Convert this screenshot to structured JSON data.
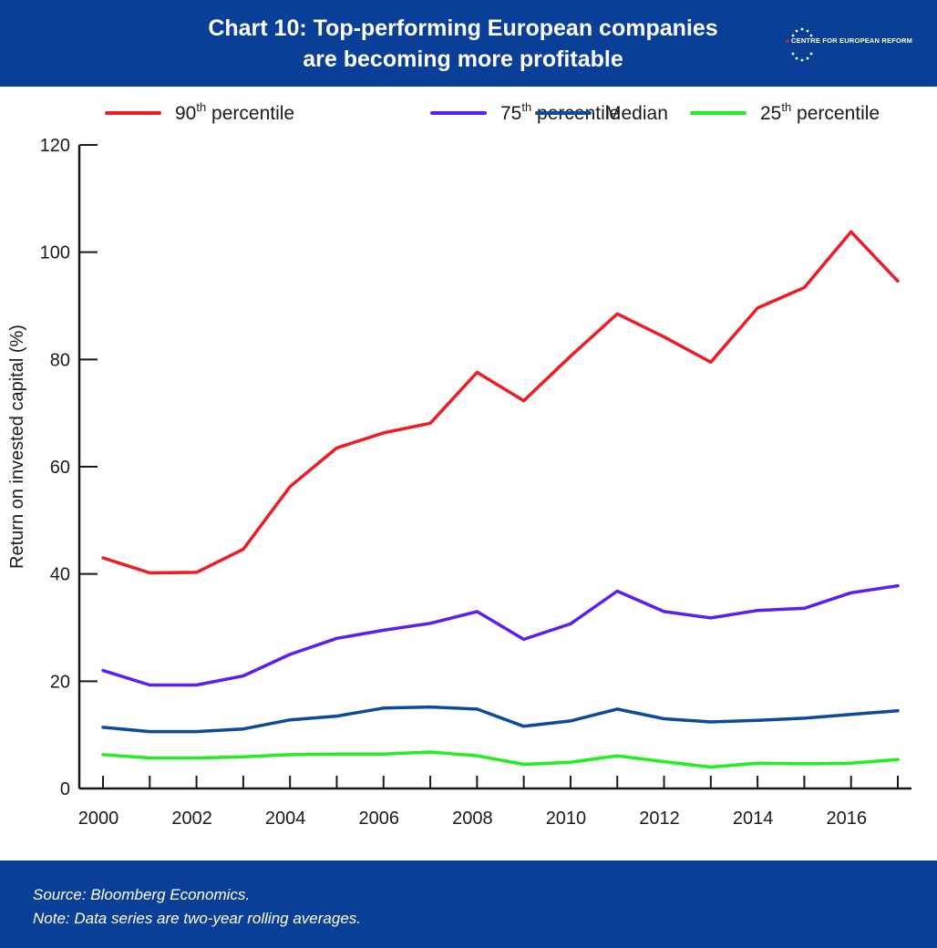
{
  "header": {
    "title_line1": "Chart 10: Top-performing European companies",
    "title_line2": "are becoming more profitable",
    "logo_text": "CENTRE FOR EUROPEAN REFORM"
  },
  "footer": {
    "source": "Source: Bloomberg Economics.",
    "note": "Note: Data series are two-year rolling averages."
  },
  "colors": {
    "header_bg": "#0a3f97",
    "p90": "#ee1c24",
    "p75": "#5b1ff0",
    "median": "#0c4a9c",
    "p25": "#22ee22"
  },
  "chart_data": {
    "type": "line",
    "ylabel": "Return on invested capital (%)",
    "xlabel": "",
    "ylim": [
      0,
      120
    ],
    "yticks": [
      0,
      20,
      40,
      60,
      80,
      100,
      120
    ],
    "xlim": [
      2000,
      2017
    ],
    "xticks": [
      2000,
      2002,
      2004,
      2006,
      2008,
      2010,
      2012,
      2014,
      2016
    ],
    "legend_position": "top",
    "grid": false,
    "x": [
      2000,
      2001,
      2002,
      2003,
      2004,
      2005,
      2006,
      2007,
      2008,
      2009,
      2010,
      2011,
      2012,
      2013,
      2014,
      2015,
      2016,
      2017
    ],
    "series": [
      {
        "name_base": "90",
        "name_sup": "th",
        "name_rest": " percentile",
        "color": "#ee1c24",
        "values": [
          43.0,
          40.2,
          40.3,
          44.6,
          56.3,
          63.5,
          66.3,
          68.1,
          77.6,
          72.3,
          80.6,
          88.5,
          84.2,
          79.5,
          89.6,
          93.4,
          103.8,
          94.6
        ]
      },
      {
        "name_base": "75",
        "name_sup": "th",
        "name_rest": " percentile",
        "color": "#5b1ff0",
        "values": [
          22.0,
          19.3,
          19.3,
          21.0,
          25.0,
          28.0,
          29.5,
          30.8,
          33.0,
          27.8,
          30.7,
          36.8,
          33.0,
          31.8,
          33.2,
          33.6,
          36.5,
          37.8
        ]
      },
      {
        "name_base": "Median",
        "name_sup": "",
        "name_rest": "",
        "color": "#0c4a9c",
        "values": [
          11.4,
          10.6,
          10.6,
          11.1,
          12.8,
          13.5,
          15.0,
          15.2,
          14.8,
          11.6,
          12.6,
          14.8,
          13.0,
          12.4,
          12.7,
          13.1,
          13.8,
          14.5
        ]
      },
      {
        "name_base": "25",
        "name_sup": "th",
        "name_rest": " percentile",
        "color": "#22ee22",
        "values": [
          6.3,
          5.7,
          5.7,
          5.9,
          6.3,
          6.4,
          6.4,
          6.8,
          6.1,
          4.5,
          4.9,
          6.1,
          5.0,
          4.0,
          4.7,
          4.6,
          4.7,
          5.4
        ]
      }
    ]
  }
}
